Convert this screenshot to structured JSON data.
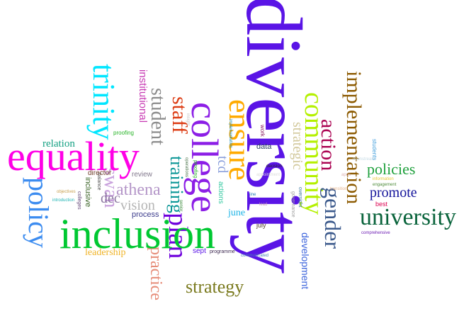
{
  "words": {
    "diversity": {
      "text": "diversity",
      "color": "#5a14e6"
    },
    "inclusion": {
      "text": "inclusion",
      "color": "#00c832"
    },
    "equality": {
      "text": "equality",
      "color": "#ff00e6"
    },
    "college": {
      "text": "college",
      "color": "#8c1ee6"
    },
    "ensure": {
      "text": "ensure",
      "color": "#ffaa00"
    },
    "community": {
      "text": "community",
      "color": "#b4f000"
    },
    "trinity": {
      "text": "trinity",
      "color": "#00e6ff"
    },
    "policy": {
      "text": "policy",
      "color": "#3c8cf0"
    },
    "university": {
      "text": "university",
      "color": "#0a643c"
    },
    "implementation": {
      "text": "implementation",
      "color": "#8c5a00"
    },
    "gender": {
      "text": "gender",
      "color": "#3c5a8c"
    },
    "action": {
      "text": "action",
      "color": "#aa0050"
    },
    "staff": {
      "text": "staff",
      "color": "#dc3c14"
    },
    "plan": {
      "text": "plan",
      "color": "#6e00dc"
    },
    "strategy": {
      "text": "strategy",
      "color": "#7a7a1e"
    },
    "practice": {
      "text": "practice",
      "color": "#e68c78"
    },
    "student": {
      "text": "student",
      "color": "#8c8c8c"
    },
    "training": {
      "text": "training",
      "color": "#0a9696"
    },
    "athena": {
      "text": "athena",
      "color": "#b496c8"
    },
    "swan": {
      "text": "swan",
      "color": "#c8a0dc"
    },
    "vision": {
      "text": "vision",
      "color": "#b4b4b4"
    },
    "dec": {
      "text": "dec",
      "color": "#8c78a0"
    },
    "policies": {
      "text": "policies",
      "color": "#1ea03c"
    },
    "promote": {
      "text": "promote",
      "color": "#14149b"
    },
    "strategic": {
      "text": "strategic",
      "color": "#d2c89b"
    },
    "institutional": {
      "text": "institutional",
      "color": "#c83cb4"
    },
    "relation": {
      "text": "relation",
      "color": "#14a082"
    },
    "leadership": {
      "text": "leadership",
      "color": "#f0b428"
    },
    "tcd": {
      "text": "tcd",
      "color": "#8ca0dc"
    },
    "development": {
      "text": "development",
      "color": "#3c64dc"
    },
    "june": {
      "text": "june",
      "color": "#1eb4e6"
    },
    "process": {
      "text": "process",
      "color": "#3c3c8c"
    },
    "inclusive": {
      "text": "inclusive",
      "color": "#3c6428"
    },
    "director": {
      "text": "director",
      "color": "#6e3c28"
    },
    "review": {
      "text": "review",
      "color": "#82788c"
    },
    "sept": {
      "text": "sept",
      "color": "#5a14e6"
    },
    "programme": {
      "text": "programme",
      "color": "#3c2850"
    },
    "communicated": {
      "text": "communicated",
      "color": "#4682b4"
    },
    "data": {
      "text": "data",
      "color": "#283c64"
    },
    "july": {
      "text": "july",
      "color": "#503c28"
    },
    "actions": {
      "text": "actions",
      "color": "#32c8a0"
    },
    "best": {
      "text": "best",
      "color": "#dc0050"
    },
    "proofing": {
      "text": "proofing",
      "color": "#28b428"
    },
    "work": {
      "text": "work",
      "color": "#8c1e64"
    },
    "decision": {
      "text": "decision",
      "color": "#282828"
    },
    "objectives": {
      "text": "objectives",
      "color": "#c8a050"
    },
    "introduction": {
      "text": "introduction",
      "color": "#1eb4b4"
    },
    "students": {
      "text": "students",
      "color": "#46a0dc"
    },
    "information": {
      "text": "information",
      "color": "#e6c832"
    },
    "engagement": {
      "text": "engagement",
      "color": "#508c3c"
    },
    "comprehensive": {
      "text": "comprehensive",
      "color": "#6e1eb4"
    },
    "oversight": {
      "text": "oversight",
      "color": "#3c78a0"
    },
    "governance": {
      "text": "governance",
      "color": "#a0a0a0"
    },
    "line": {
      "text": "line",
      "color": "#1e78b4"
    },
    "lead": {
      "text": "lead",
      "color": "#c8a0b4"
    },
    "appointment": {
      "text": "appointment",
      "color": "#dcdcdc"
    },
    "balance": {
      "text": "balance",
      "color": "#505050"
    },
    "colleges": {
      "text": "colleges",
      "color": "#644678"
    },
    "implementation_small": {
      "text": "implementation",
      "color": "#1e8cb4"
    },
    "operations": {
      "text": "operations",
      "color": "#507850"
    },
    "insight": {
      "text": "insight",
      "color": "#c8c8c8"
    },
    "apos": {
      "text": "apos",
      "color": "#dcb4b4"
    },
    "transition": {
      "text": "transition",
      "color": "#e6b48c"
    },
    "mainstream": {
      "text": "mainstream",
      "color": "#c8dce6"
    },
    "senior": {
      "text": "senior",
      "color": "#3c8c3c"
    }
  }
}
